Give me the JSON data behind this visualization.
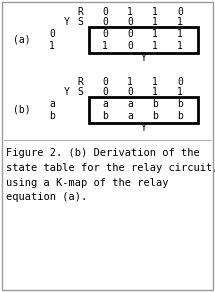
{
  "title_a": "(a)",
  "title_b": "(b)",
  "row_header_a": [
    "0",
    "1"
  ],
  "row_header_b": [
    "a",
    "b"
  ],
  "col_R": [
    "0",
    "1",
    "1",
    "0"
  ],
  "col_YS_vals": [
    "0",
    "0",
    "1",
    "1"
  ],
  "table_a": [
    [
      "0",
      "0",
      "1",
      "1"
    ],
    [
      "1",
      "0",
      "1",
      "1"
    ]
  ],
  "table_b": [
    [
      "a",
      "a",
      "b",
      "b"
    ],
    [
      "b",
      "a",
      "b",
      "b"
    ]
  ],
  "caption": "Figure 2. (b) Derivation of the\nstate table for the relay circuit,\nusing a K-map of the relay\nequation (a).",
  "bg_color": "#ffffff",
  "font_color": "#000000",
  "box_color": "#000000",
  "font_family": "monospace",
  "font_size": 7.0,
  "caption_font_size": 7.5
}
